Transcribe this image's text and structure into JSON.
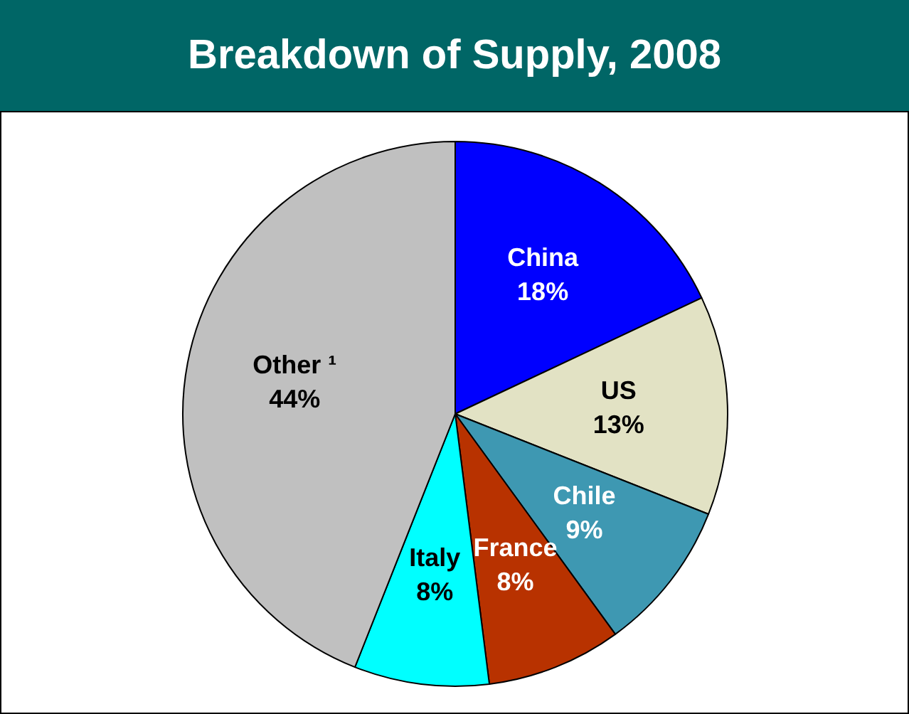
{
  "chart_data": {
    "type": "pie",
    "title": "Breakdown of Supply, 2008",
    "categories": [
      "China",
      "US",
      "Chile",
      "France",
      "Italy",
      "Other ¹"
    ],
    "values": [
      18,
      13,
      9,
      8,
      8,
      44
    ],
    "value_labels": [
      "18%",
      "13%",
      "9%",
      "8%",
      "8%",
      "44%"
    ],
    "colors": [
      "#0000ff",
      "#e2e2c4",
      "#3e98b2",
      "#b83200",
      "#00ffff",
      "#c0c0c0"
    ],
    "legend": false
  }
}
